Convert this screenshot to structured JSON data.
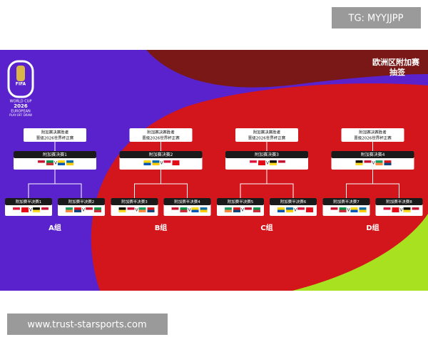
{
  "header": {
    "tag": "TG: MYYJJPP",
    "footer": "www.trust-starsports.com"
  },
  "logo": {
    "brand": "FIFA",
    "lines": [
      "WORLD CUP",
      "2026",
      "EUROPEAN",
      "PLAY-OFF DRAW"
    ]
  },
  "title": [
    "欧洲区附加赛",
    "抽签"
  ],
  "vs": "V",
  "groups": [
    {
      "name": "A组",
      "winner": [
        "附加赛决赛胜者",
        "晋级2026世界杯正赛"
      ],
      "final": "附加赛决赛1",
      "semis": [
        "附加赛半决赛1",
        "附加赛半决赛2"
      ]
    },
    {
      "name": "B组",
      "winner": [
        "附加赛决赛胜者",
        "晋级2026世界杯正赛"
      ],
      "final": "附加赛决赛2",
      "semis": [
        "附加赛半决赛3",
        "附加赛半决赛4"
      ]
    },
    {
      "name": "C组",
      "winner": [
        "附加赛决赛胜者",
        "晋级2026世界杯正赛"
      ],
      "final": "附加赛决赛3",
      "semis": [
        "附加赛半决赛5",
        "附加赛半决赛6"
      ]
    },
    {
      "name": "D组",
      "winner": [
        "附加赛决赛胜者",
        "晋级2026世界杯正赛"
      ],
      "final": "附加赛决赛4",
      "semis": [
        "附加赛半决赛7",
        "附加赛半决赛8"
      ]
    }
  ]
}
